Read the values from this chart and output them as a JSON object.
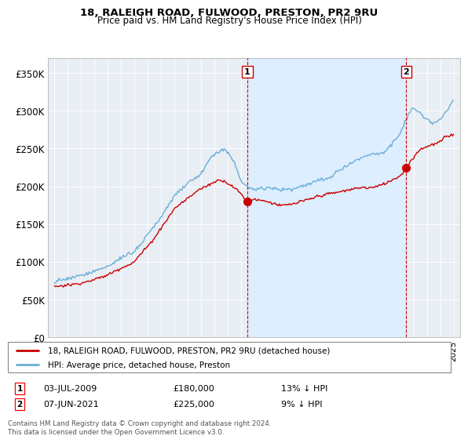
{
  "title1": "18, RALEIGH ROAD, FULWOOD, PRESTON, PR2 9RU",
  "title2": "Price paid vs. HM Land Registry's House Price Index (HPI)",
  "legend1": "18, RALEIGH ROAD, FULWOOD, PRESTON, PR2 9RU (detached house)",
  "legend2": "HPI: Average price, detached house, Preston",
  "sale1_date": "03-JUL-2009",
  "sale1_price": 180000,
  "sale1_pct": "13% ↓ HPI",
  "sale2_date": "07-JUN-2021",
  "sale2_price": 225000,
  "sale2_pct": "9% ↓ HPI",
  "footer": "Contains HM Land Registry data © Crown copyright and database right 2024.\nThis data is licensed under the Open Government Licence v3.0.",
  "hpi_color": "#6baed6",
  "price_color": "#cc0000",
  "vline_color": "#cc0000",
  "shade_color": "#ddeeff",
  "marker1_x": 2009.5,
  "marker2_x": 2021.45,
  "ylim": [
    0,
    370000
  ],
  "yticks": [
    0,
    50000,
    100000,
    150000,
    200000,
    250000,
    300000,
    350000
  ],
  "ytick_labels": [
    "£0",
    "£50K",
    "£100K",
    "£150K",
    "£200K",
    "£250K",
    "£300K",
    "£350K"
  ],
  "xlim_start": 1994.5,
  "xlim_end": 2025.5,
  "bg_color": "#e8eef4"
}
